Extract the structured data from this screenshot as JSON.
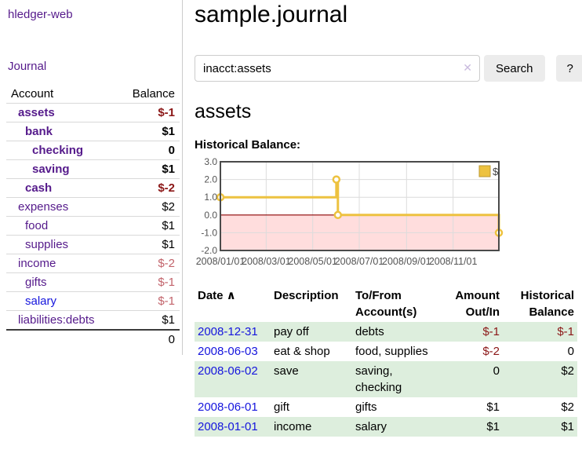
{
  "app": {
    "brand": "hledger-web",
    "nav_journal": "Journal"
  },
  "sidebar": {
    "table": {
      "headers": {
        "account": "Account",
        "balance": "Balance"
      },
      "rows": [
        {
          "name": "assets",
          "indent": 1,
          "bold": true,
          "link_color": "purple",
          "balance": "$-1",
          "balance_style": "neg-strong"
        },
        {
          "name": "bank",
          "indent": 2,
          "bold": true,
          "link_color": "purple",
          "balance": "$1",
          "balance_style": "pos"
        },
        {
          "name": "checking",
          "indent": 3,
          "bold": true,
          "link_color": "purple",
          "balance": "0",
          "balance_style": "pos"
        },
        {
          "name": "saving",
          "indent": 3,
          "bold": true,
          "link_color": "purple",
          "balance": "$1",
          "balance_style": "pos"
        },
        {
          "name": "cash",
          "indent": 2,
          "bold": true,
          "link_color": "purple",
          "balance": "$-2",
          "balance_style": "neg-strong"
        },
        {
          "name": "expenses",
          "indent": 1,
          "bold": false,
          "link_color": "purple",
          "balance": "$2",
          "balance_style": "pos"
        },
        {
          "name": "food",
          "indent": 2,
          "bold": false,
          "link_color": "purple",
          "balance": "$1",
          "balance_style": "pos"
        },
        {
          "name": "supplies",
          "indent": 2,
          "bold": false,
          "link_color": "purple",
          "balance": "$1",
          "balance_style": "pos"
        },
        {
          "name": "income",
          "indent": 1,
          "bold": false,
          "link_color": "purple",
          "balance": "$-2",
          "balance_style": "neg-soft"
        },
        {
          "name": "gifts",
          "indent": 2,
          "bold": false,
          "link_color": "purple",
          "balance": "$-1",
          "balance_style": "neg-soft"
        },
        {
          "name": "salary",
          "indent": 2,
          "bold": false,
          "link_color": "blue",
          "balance": "$-1",
          "balance_style": "neg-soft"
        },
        {
          "name": "liabilities:debts",
          "indent": 1,
          "bold": false,
          "link_color": "purple",
          "balance": "$1",
          "balance_style": "pos"
        }
      ],
      "total": "0"
    }
  },
  "header": {
    "title": "sample.journal"
  },
  "search": {
    "value": "inacct:assets",
    "clear_icon": "✕",
    "button": "Search",
    "help_button": "?"
  },
  "account_page": {
    "heading": "assets",
    "chart_label": "Historical Balance:"
  },
  "chart_data": {
    "type": "line",
    "title": "Historical Balance of assets",
    "series": [
      {
        "name": "$",
        "color": "#EDC240",
        "step": true,
        "points": [
          [
            "2008-01-01",
            1
          ],
          [
            "2008-06-01",
            2
          ],
          [
            "2008-06-03",
            0
          ],
          [
            "2008-12-31",
            -1
          ]
        ]
      }
    ],
    "x_range": [
      "2008-01-01",
      "2008-12-31"
    ],
    "x_ticks": [
      "2008/01/01",
      "2008/03/01",
      "2008/05/01",
      "2008/07/01",
      "2008/09/01",
      "2008/11/01"
    ],
    "y_ticks": [
      3.0,
      2.0,
      1.0,
      0.0,
      -1.0,
      -2.0
    ],
    "ylim": [
      -2,
      3
    ],
    "grid": true,
    "negative_region_fill": "#ffdddd",
    "zero_line_color": "#8b0000",
    "axis_label_color": "#545454",
    "legend": {
      "label": "$",
      "position": "top-right"
    }
  },
  "register": {
    "sort_icon": "∧",
    "columns": [
      {
        "lines": [
          "Date"
        ],
        "align": "left",
        "sort": true
      },
      {
        "lines": [
          "Description"
        ],
        "align": "left",
        "sort": false
      },
      {
        "lines": [
          "To/From",
          "Account(s)"
        ],
        "align": "left",
        "sort": false
      },
      {
        "lines": [
          "Amount",
          "Out/In"
        ],
        "align": "right",
        "sort": false
      },
      {
        "lines": [
          "Historical",
          "Balance"
        ],
        "align": "right",
        "sort": false
      }
    ],
    "rows": [
      {
        "date": "2008-12-31",
        "description": "pay off",
        "accounts": "debts",
        "amount": "$-1",
        "amount_neg": true,
        "balance": "$-1",
        "balance_neg": true,
        "striped": true
      },
      {
        "date": "2008-06-03",
        "description": "eat & shop",
        "accounts": "food, supplies",
        "amount": "$-2",
        "amount_neg": true,
        "balance": "0",
        "balance_neg": false,
        "striped": false
      },
      {
        "date": "2008-06-02",
        "description": "save",
        "accounts": "saving, checking",
        "amount": "0",
        "amount_neg": false,
        "balance": "$2",
        "balance_neg": false,
        "striped": true
      },
      {
        "date": "2008-06-01",
        "description": "gift",
        "accounts": "gifts",
        "amount": "$1",
        "amount_neg": false,
        "balance": "$2",
        "balance_neg": false,
        "striped": false
      },
      {
        "date": "2008-01-01",
        "description": "income",
        "accounts": "salary",
        "amount": "$1",
        "amount_neg": false,
        "balance": "$1",
        "balance_neg": false,
        "striped": true
      }
    ]
  }
}
